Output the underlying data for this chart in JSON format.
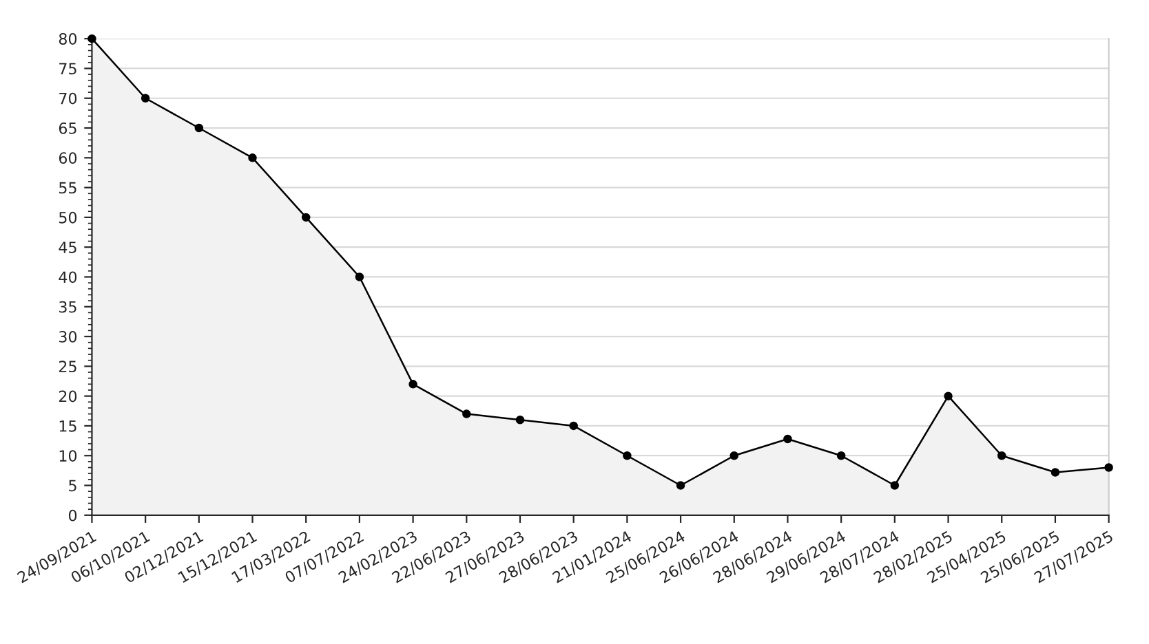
{
  "chart_data": {
    "type": "area",
    "categories": [
      "24/09/2021",
      "06/10/2021",
      "02/12/2021",
      "15/12/2021",
      "17/03/2022",
      "07/07/2022",
      "24/02/2023",
      "22/06/2023",
      "27/06/2023",
      "28/06/2023",
      "21/01/2024",
      "25/06/2024",
      "26/06/2024",
      "28/06/2024",
      "29/06/2024",
      "28/07/2024",
      "28/02/2025",
      "25/04/2025",
      "25/06/2025",
      "27/07/2025"
    ],
    "series": [
      {
        "color": "#000000",
        "values": [
          80,
          70,
          65,
          60,
          50,
          40,
          22,
          17,
          16,
          15,
          10,
          5,
          10,
          12.8,
          10,
          5,
          20,
          10,
          7.2,
          8
        ]
      }
    ],
    "ylim": [
      0,
      80
    ],
    "yticks": [
      0,
      5,
      10,
      15,
      20,
      25,
      30,
      35,
      40,
      45,
      50,
      55,
      60,
      65,
      70,
      75,
      80
    ],
    "grid": "y",
    "marker": "circle",
    "line_style": "solid"
  }
}
